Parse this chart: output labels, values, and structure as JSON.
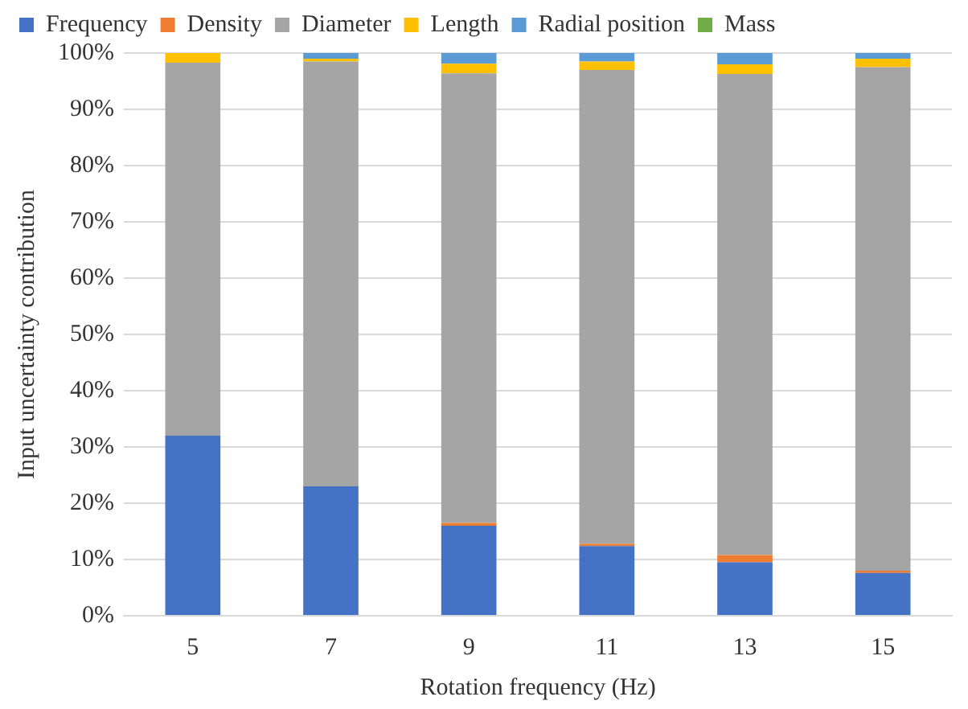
{
  "chart_data": {
    "type": "bar",
    "stacked": true,
    "xlabel": "Rotation frequency (Hz)",
    "ylabel": "Input uncertainty contribution",
    "categories": [
      "5",
      "7",
      "9",
      "11",
      "13",
      "15"
    ],
    "series": [
      {
        "name": "Frequency",
        "color": "#4472c4",
        "values": [
          32,
          23,
          16,
          12.4,
          9.5,
          7.6
        ]
      },
      {
        "name": "Density",
        "color": "#ed7d31",
        "values": [
          0,
          0,
          0.5,
          0.4,
          1.3,
          0.4
        ]
      },
      {
        "name": "Diameter",
        "color": "#a5a5a5",
        "values": [
          66.3,
          75.5,
          79.9,
          84.2,
          85.5,
          89.5
        ]
      },
      {
        "name": "Length",
        "color": "#ffc000",
        "values": [
          1.7,
          0.5,
          1.7,
          1.5,
          1.7,
          1.5
        ]
      },
      {
        "name": "Radial position",
        "color": "#5b9bd5",
        "values": [
          0,
          1,
          1.9,
          1.5,
          2,
          1
        ]
      },
      {
        "name": "Mass",
        "color": "#70ad47",
        "values": [
          0,
          0,
          0,
          0,
          0,
          0
        ]
      }
    ],
    "ylim": [
      0,
      100
    ],
    "yticks": [
      {
        "value": 0,
        "label": "0%"
      },
      {
        "value": 10,
        "label": "10%"
      },
      {
        "value": 20,
        "label": "20%"
      },
      {
        "value": 30,
        "label": "30%"
      },
      {
        "value": 40,
        "label": "40%"
      },
      {
        "value": 50,
        "label": "50%"
      },
      {
        "value": 60,
        "label": "60%"
      },
      {
        "value": 70,
        "label": "70%"
      },
      {
        "value": 80,
        "label": "80%"
      },
      {
        "value": 90,
        "label": "90%"
      },
      {
        "value": 100,
        "label": "100%"
      }
    ],
    "grid": "y",
    "legend": "top"
  }
}
